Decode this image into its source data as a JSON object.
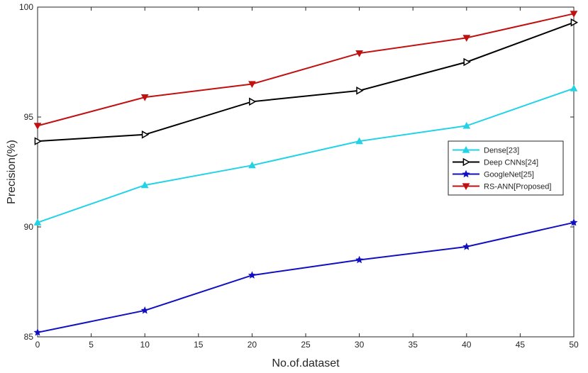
{
  "chart_data": {
    "type": "line",
    "title": "",
    "xlabel": "No.of.dataset",
    "ylabel": "Precision(%)",
    "xlim": [
      0,
      50
    ],
    "ylim": [
      85,
      100
    ],
    "x_ticks": [
      0,
      5,
      10,
      15,
      20,
      25,
      30,
      35,
      40,
      45,
      50
    ],
    "y_ticks": [
      85,
      90,
      95,
      100
    ],
    "grid": false,
    "legend_position": "right",
    "x": [
      0,
      10,
      20,
      30,
      40,
      50
    ],
    "series": [
      {
        "name": "Dense[23]",
        "color": "#22d3e6",
        "marker": "triangle-up",
        "values": [
          90.2,
          91.9,
          92.8,
          93.9,
          94.6,
          96.3
        ]
      },
      {
        "name": "Deep CNNs[24]",
        "color": "#000000",
        "marker": "triangle-right",
        "values": [
          93.9,
          94.2,
          95.7,
          96.2,
          97.5,
          99.3
        ]
      },
      {
        "name": "GoogleNet[25]",
        "color": "#1010c0",
        "marker": "star",
        "values": [
          85.2,
          86.2,
          87.8,
          88.5,
          89.1,
          90.2
        ]
      },
      {
        "name": "RS-ANN[Proposed]",
        "color": "#c01010",
        "marker": "triangle-down",
        "values": [
          94.6,
          95.9,
          96.5,
          97.9,
          98.6,
          99.7
        ]
      }
    ]
  }
}
